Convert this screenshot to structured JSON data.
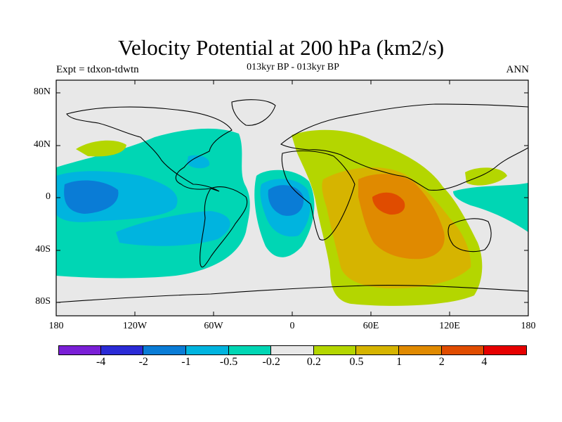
{
  "title": "Velocity Potential at 200 hPa (km2/s)",
  "experiment": "Expt = tdxon-tdwtn",
  "subtitle": "013kyr BP - 013kyr BP",
  "season": "ANN",
  "axes": {
    "y_ticks": [
      "80N",
      "40N",
      "0",
      "40S",
      "80S"
    ],
    "x_ticks": [
      "180",
      "120W",
      "60W",
      "0",
      "60E",
      "120E",
      "180"
    ]
  },
  "colorbar": {
    "colors": [
      "#7a1fd6",
      "#2b2bd6",
      "#0a7cd6",
      "#00b4df",
      "#00d6b4",
      "#e8e8e8",
      "#b4d600",
      "#d6b400",
      "#e08a00",
      "#e04c00",
      "#e60000"
    ],
    "labels": [
      "-4",
      "-2",
      "-1",
      "-0.5",
      "-0.2",
      "0.2",
      "0.5",
      "1",
      "2",
      "4"
    ]
  },
  "land_color": "#e8e8e8"
}
